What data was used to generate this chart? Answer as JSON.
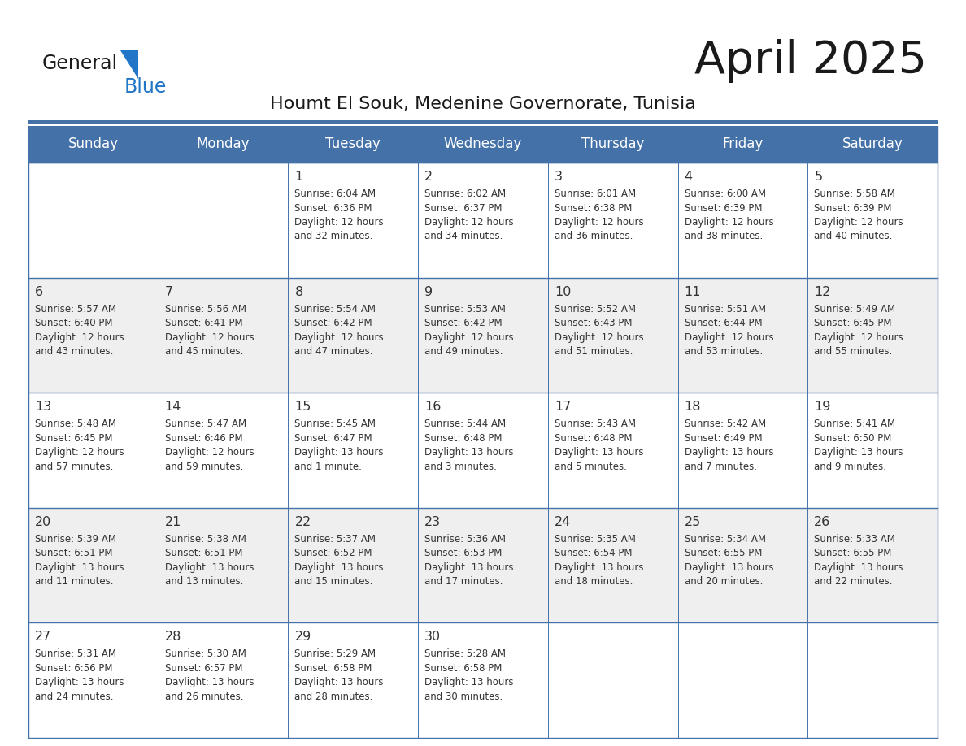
{
  "title": "April 2025",
  "subtitle": "Houmt El Souk, Medenine Governorate, Tunisia",
  "days_of_week": [
    "Sunday",
    "Monday",
    "Tuesday",
    "Wednesday",
    "Thursday",
    "Friday",
    "Saturday"
  ],
  "header_bg": "#4472a8",
  "header_text": "#ffffff",
  "row_bg_even": "#efefef",
  "row_bg_odd": "#ffffff",
  "border_color": "#4472a8",
  "text_color": "#333333",
  "title_color": "#1a1a1a",
  "subtitle_color": "#1a1a1a",
  "logo_general_color": "#1a1a1a",
  "logo_blue_color": "#2176c7",
  "calendar": [
    [
      {
        "day": "",
        "info": ""
      },
      {
        "day": "",
        "info": ""
      },
      {
        "day": "1",
        "info": "Sunrise: 6:04 AM\nSunset: 6:36 PM\nDaylight: 12 hours\nand 32 minutes."
      },
      {
        "day": "2",
        "info": "Sunrise: 6:02 AM\nSunset: 6:37 PM\nDaylight: 12 hours\nand 34 minutes."
      },
      {
        "day": "3",
        "info": "Sunrise: 6:01 AM\nSunset: 6:38 PM\nDaylight: 12 hours\nand 36 minutes."
      },
      {
        "day": "4",
        "info": "Sunrise: 6:00 AM\nSunset: 6:39 PM\nDaylight: 12 hours\nand 38 minutes."
      },
      {
        "day": "5",
        "info": "Sunrise: 5:58 AM\nSunset: 6:39 PM\nDaylight: 12 hours\nand 40 minutes."
      }
    ],
    [
      {
        "day": "6",
        "info": "Sunrise: 5:57 AM\nSunset: 6:40 PM\nDaylight: 12 hours\nand 43 minutes."
      },
      {
        "day": "7",
        "info": "Sunrise: 5:56 AM\nSunset: 6:41 PM\nDaylight: 12 hours\nand 45 minutes."
      },
      {
        "day": "8",
        "info": "Sunrise: 5:54 AM\nSunset: 6:42 PM\nDaylight: 12 hours\nand 47 minutes."
      },
      {
        "day": "9",
        "info": "Sunrise: 5:53 AM\nSunset: 6:42 PM\nDaylight: 12 hours\nand 49 minutes."
      },
      {
        "day": "10",
        "info": "Sunrise: 5:52 AM\nSunset: 6:43 PM\nDaylight: 12 hours\nand 51 minutes."
      },
      {
        "day": "11",
        "info": "Sunrise: 5:51 AM\nSunset: 6:44 PM\nDaylight: 12 hours\nand 53 minutes."
      },
      {
        "day": "12",
        "info": "Sunrise: 5:49 AM\nSunset: 6:45 PM\nDaylight: 12 hours\nand 55 minutes."
      }
    ],
    [
      {
        "day": "13",
        "info": "Sunrise: 5:48 AM\nSunset: 6:45 PM\nDaylight: 12 hours\nand 57 minutes."
      },
      {
        "day": "14",
        "info": "Sunrise: 5:47 AM\nSunset: 6:46 PM\nDaylight: 12 hours\nand 59 minutes."
      },
      {
        "day": "15",
        "info": "Sunrise: 5:45 AM\nSunset: 6:47 PM\nDaylight: 13 hours\nand 1 minute."
      },
      {
        "day": "16",
        "info": "Sunrise: 5:44 AM\nSunset: 6:48 PM\nDaylight: 13 hours\nand 3 minutes."
      },
      {
        "day": "17",
        "info": "Sunrise: 5:43 AM\nSunset: 6:48 PM\nDaylight: 13 hours\nand 5 minutes."
      },
      {
        "day": "18",
        "info": "Sunrise: 5:42 AM\nSunset: 6:49 PM\nDaylight: 13 hours\nand 7 minutes."
      },
      {
        "day": "19",
        "info": "Sunrise: 5:41 AM\nSunset: 6:50 PM\nDaylight: 13 hours\nand 9 minutes."
      }
    ],
    [
      {
        "day": "20",
        "info": "Sunrise: 5:39 AM\nSunset: 6:51 PM\nDaylight: 13 hours\nand 11 minutes."
      },
      {
        "day": "21",
        "info": "Sunrise: 5:38 AM\nSunset: 6:51 PM\nDaylight: 13 hours\nand 13 minutes."
      },
      {
        "day": "22",
        "info": "Sunrise: 5:37 AM\nSunset: 6:52 PM\nDaylight: 13 hours\nand 15 minutes."
      },
      {
        "day": "23",
        "info": "Sunrise: 5:36 AM\nSunset: 6:53 PM\nDaylight: 13 hours\nand 17 minutes."
      },
      {
        "day": "24",
        "info": "Sunrise: 5:35 AM\nSunset: 6:54 PM\nDaylight: 13 hours\nand 18 minutes."
      },
      {
        "day": "25",
        "info": "Sunrise: 5:34 AM\nSunset: 6:55 PM\nDaylight: 13 hours\nand 20 minutes."
      },
      {
        "day": "26",
        "info": "Sunrise: 5:33 AM\nSunset: 6:55 PM\nDaylight: 13 hours\nand 22 minutes."
      }
    ],
    [
      {
        "day": "27",
        "info": "Sunrise: 5:31 AM\nSunset: 6:56 PM\nDaylight: 13 hours\nand 24 minutes."
      },
      {
        "day": "28",
        "info": "Sunrise: 5:30 AM\nSunset: 6:57 PM\nDaylight: 13 hours\nand 26 minutes."
      },
      {
        "day": "29",
        "info": "Sunrise: 5:29 AM\nSunset: 6:58 PM\nDaylight: 13 hours\nand 28 minutes."
      },
      {
        "day": "30",
        "info": "Sunrise: 5:28 AM\nSunset: 6:58 PM\nDaylight: 13 hours\nand 30 minutes."
      },
      {
        "day": "",
        "info": ""
      },
      {
        "day": "",
        "info": ""
      },
      {
        "day": "",
        "info": ""
      }
    ]
  ]
}
